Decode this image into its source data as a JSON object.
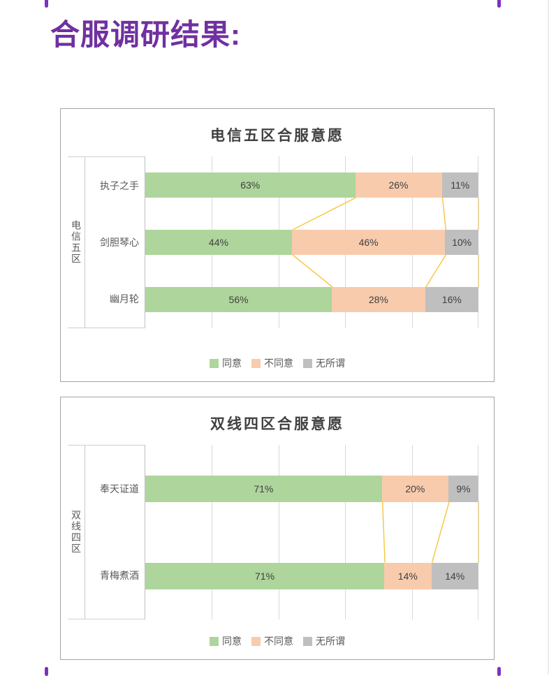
{
  "page": {
    "title": "合服调研结果:"
  },
  "colors": {
    "accent_purple": "#7030a0",
    "agree_green": "#aed59c",
    "disagree_orange": "#f8cbad",
    "neutral_gray": "#bfbfbf",
    "connector_yellow": "#f7c948",
    "gridline_gray": "#d9d9d9"
  },
  "chart_data": [
    {
      "type": "bar",
      "subtype": "stacked-horizontal-100pct",
      "title": "电信五区合服意愿",
      "axis_group_label": "电信五区",
      "categories": [
        "执子之手",
        "剑胆琴心",
        "幽月轮"
      ],
      "series": [
        {
          "name": "同意",
          "color": "#aed59c",
          "values": [
            63,
            44,
            56
          ],
          "labels": [
            "63%",
            "44%",
            "56%"
          ]
        },
        {
          "name": "不同意",
          "color": "#f8cbad",
          "values": [
            26,
            46,
            28
          ],
          "labels": [
            "26%",
            "46%",
            "28%"
          ]
        },
        {
          "name": "无所谓",
          "color": "#bfbfbf",
          "values": [
            11,
            10,
            16
          ],
          "labels": [
            "11%",
            "10%",
            "16%"
          ]
        }
      ],
      "xlim": [
        0,
        100
      ],
      "gridline_step_pct": 20,
      "grid": true,
      "legend_position": "bottom",
      "series_connector_lines": true
    },
    {
      "type": "bar",
      "subtype": "stacked-horizontal-100pct",
      "title": "双线四区合服意愿",
      "axis_group_label": "双线四区",
      "categories": [
        "奉天证道",
        "青梅煮酒"
      ],
      "series": [
        {
          "name": "同意",
          "color": "#aed59c",
          "values": [
            71,
            71
          ],
          "labels": [
            "71%",
            "71%"
          ]
        },
        {
          "name": "不同意",
          "color": "#f8cbad",
          "values": [
            20,
            14
          ],
          "labels": [
            "20%",
            "14%"
          ]
        },
        {
          "name": "无所谓",
          "color": "#bfbfbf",
          "values": [
            9,
            14
          ],
          "labels": [
            "9%",
            "14%"
          ]
        }
      ],
      "xlim": [
        0,
        100
      ],
      "gridline_step_pct": 20,
      "grid": true,
      "legend_position": "bottom",
      "series_connector_lines": true
    }
  ]
}
